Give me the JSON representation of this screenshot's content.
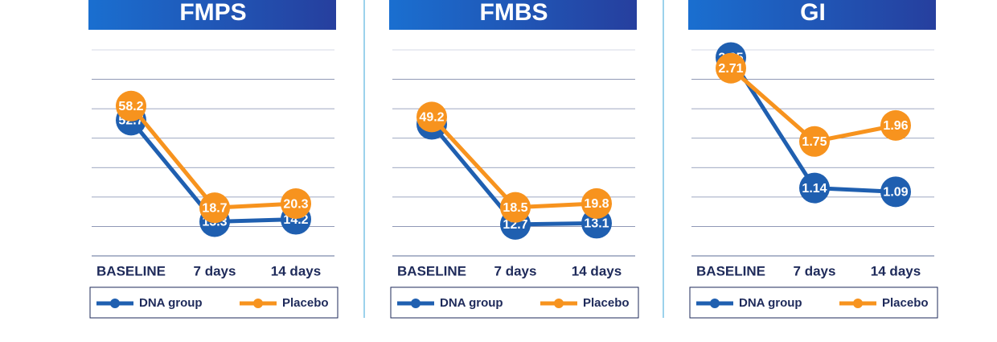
{
  "chart_data": [
    {
      "type": "line",
      "title": "FMPS",
      "categories": [
        "BASELINE",
        "7 days",
        "14 days"
      ],
      "ylim": [
        0,
        80
      ],
      "series": [
        {
          "name": "DNA group",
          "color": "#1f5fb0",
          "values": [
            52.7,
            13.3,
            14.2
          ]
        },
        {
          "name": "Placebo",
          "color": "#f7931e",
          "values": [
            58.2,
            18.7,
            20.3
          ]
        }
      ]
    },
    {
      "type": "line",
      "title": "FMBS",
      "categories": [
        "BASELINE",
        "7 days",
        "14 days"
      ],
      "ylim": [
        2,
        72
      ],
      "series": [
        {
          "name": "DNA group",
          "color": "#1f5fb0",
          "values": [
            46.7,
            12.7,
            13.1
          ]
        },
        {
          "name": "Placebo",
          "color": "#f7931e",
          "values": [
            49.2,
            18.5,
            19.8
          ]
        }
      ]
    },
    {
      "type": "line",
      "title": "GI",
      "categories": [
        "BASELINE",
        "7 days",
        "14 days"
      ],
      "ylim": [
        0.25,
        2.95
      ],
      "series": [
        {
          "name": "DNA group",
          "color": "#1f5fb0",
          "values": [
            2.85,
            1.14,
            1.09
          ]
        },
        {
          "name": "Placebo",
          "color": "#f7931e",
          "values": [
            2.71,
            1.75,
            1.96
          ]
        }
      ]
    }
  ]
}
